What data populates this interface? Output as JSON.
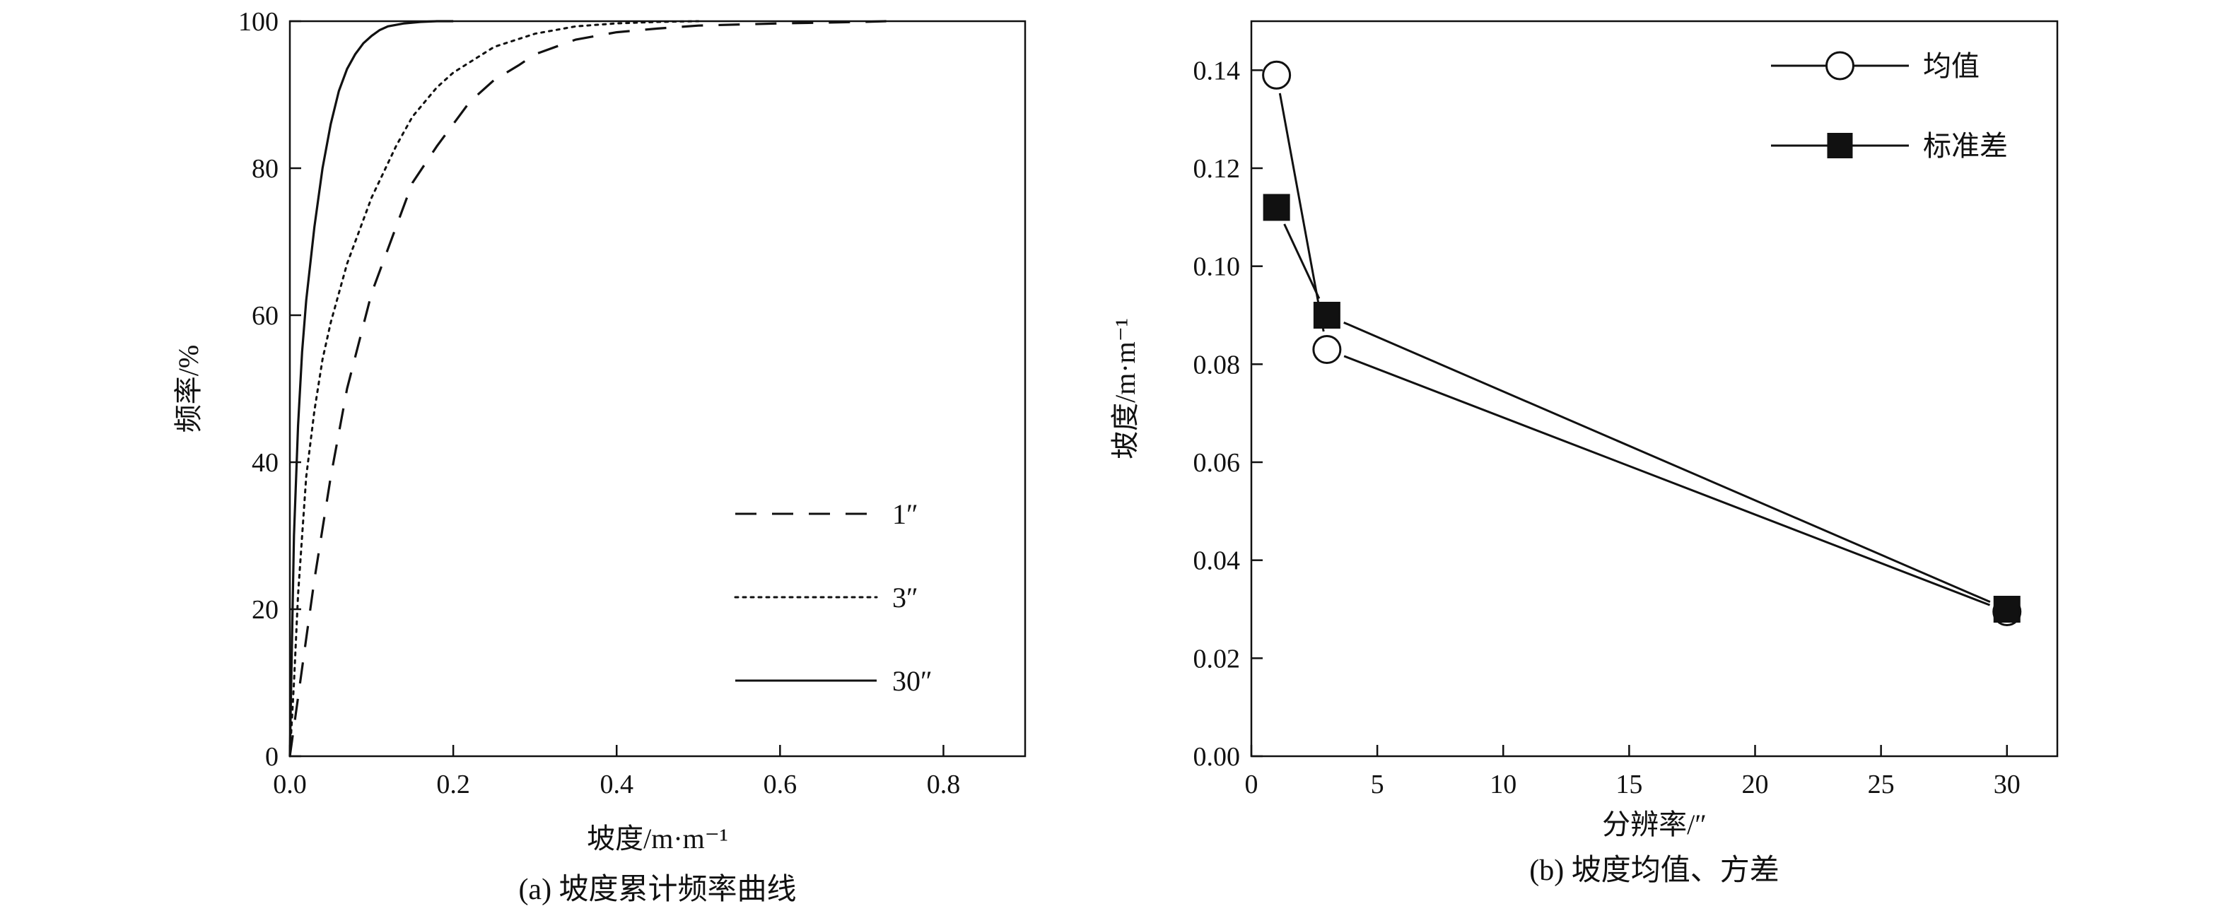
{
  "chart_data": [
    {
      "type": "line",
      "caption": "(a) 坡度累计频率曲线",
      "xlabel": "坡度/m·m⁻¹",
      "ylabel": "频率/%",
      "xlim": [
        0,
        0.9
      ],
      "ylim": [
        0,
        100
      ],
      "xticks": [
        0,
        0.2,
        0.4,
        0.6,
        0.8
      ],
      "xtick_labels": [
        "0.0",
        "0.2",
        "0.4",
        "0.6",
        "0.8"
      ],
      "yticks": [
        0,
        20,
        40,
        60,
        80,
        100
      ],
      "ytick_labels": [
        "0",
        "20",
        "40",
        "60",
        "80",
        "100"
      ],
      "grid": false,
      "legend_position": "bottom-right",
      "series": [
        {
          "name": "1″",
          "line_style": "dashed",
          "x": [
            0,
            0.005,
            0.01,
            0.02,
            0.03,
            0.05,
            0.07,
            0.1,
            0.13,
            0.15,
            0.18,
            0.2,
            0.22,
            0.25,
            0.28,
            0.3,
            0.35,
            0.4,
            0.45,
            0.5,
            0.6,
            0.7,
            0.73
          ],
          "y": [
            0,
            4,
            8,
            16,
            24,
            38,
            50,
            63,
            72,
            78,
            83,
            86,
            89,
            92,
            94,
            95.5,
            97.5,
            98.5,
            99,
            99.4,
            99.7,
            99.9,
            100
          ]
        },
        {
          "name": "3″",
          "line_style": "dotted",
          "x": [
            0,
            0.005,
            0.01,
            0.02,
            0.03,
            0.04,
            0.05,
            0.07,
            0.1,
            0.13,
            0.15,
            0.18,
            0.2,
            0.25,
            0.3,
            0.35,
            0.4,
            0.45,
            0.5
          ],
          "y": [
            0,
            10,
            22,
            38,
            47,
            54,
            59,
            67,
            76,
            83,
            87,
            91,
            93,
            96.5,
            98.3,
            99.3,
            99.7,
            99.9,
            100
          ]
        },
        {
          "name": "30″",
          "line_style": "solid",
          "x": [
            0,
            0.002,
            0.005,
            0.01,
            0.015,
            0.02,
            0.03,
            0.04,
            0.05,
            0.06,
            0.07,
            0.08,
            0.09,
            0.1,
            0.11,
            0.12,
            0.14,
            0.16,
            0.18,
            0.2
          ],
          "y": [
            0,
            12,
            30,
            45,
            55,
            62,
            72,
            80,
            86,
            90.5,
            93.5,
            95.5,
            97,
            98,
            98.8,
            99.3,
            99.7,
            99.9,
            100,
            100
          ]
        }
      ]
    },
    {
      "type": "line",
      "caption": "(b) 坡度均值、方差",
      "xlabel": "分辨率/″",
      "ylabel": "坡度/m·m⁻¹",
      "xlim": [
        0,
        32
      ],
      "ylim": [
        0,
        0.15
      ],
      "xticks": [
        0,
        5,
        10,
        15,
        20,
        25,
        30
      ],
      "xtick_labels": [
        "0",
        "5",
        "10",
        "15",
        "20",
        "25",
        "30"
      ],
      "yticks": [
        0,
        0.02,
        0.04,
        0.06,
        0.08,
        0.1,
        0.12,
        0.14
      ],
      "ytick_labels": [
        "0.00",
        "0.02",
        "0.04",
        "0.06",
        "0.08",
        "0.10",
        "0.12",
        "0.14"
      ],
      "grid": false,
      "legend_position": "top-right",
      "categories": [
        1,
        3,
        30
      ],
      "series": [
        {
          "name": "均值",
          "marker": "open-circle",
          "values": [
            0.139,
            0.083,
            0.0295
          ]
        },
        {
          "name": "标准差",
          "marker": "filled-square",
          "values": [
            0.112,
            0.09,
            0.03
          ]
        }
      ]
    }
  ]
}
